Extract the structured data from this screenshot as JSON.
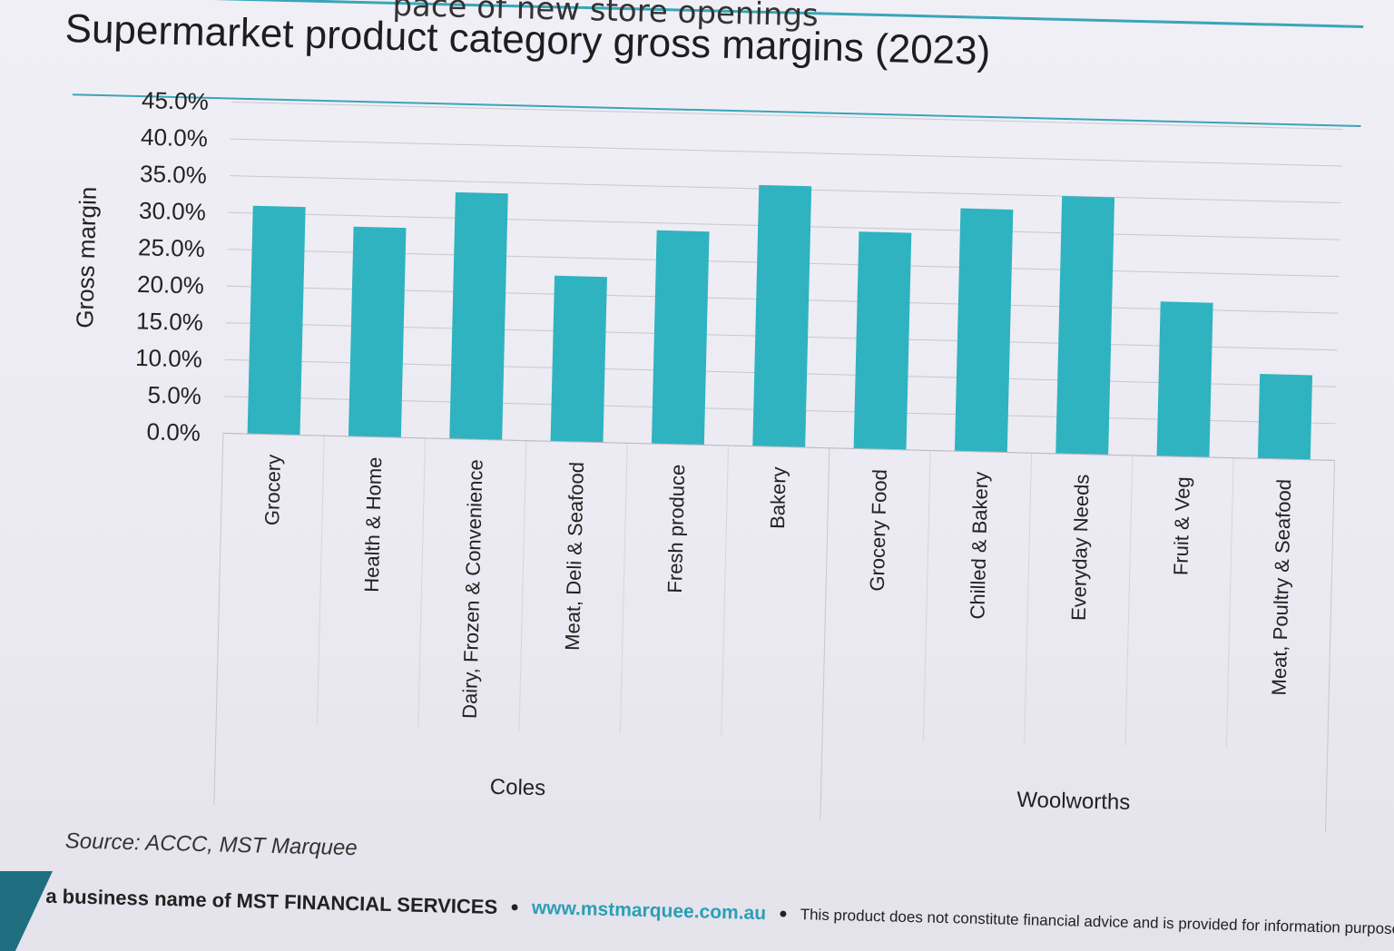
{
  "slide": {
    "top_subtitle": "pace of new store openings",
    "source": "Source: ACCC, MST Marquee",
    "footer": {
      "business": "a business name of MST FINANCIAL SERVICES",
      "url": "www.mstmarquee.com.au",
      "disclaimer": "This product does not constitute financial advice and is provided for information purposes only."
    }
  },
  "colors": {
    "bar": "#2fb3c0",
    "grid": "#c8c8cc",
    "accent": "#3aa5b8"
  },
  "chart_data": {
    "type": "bar",
    "title": "Supermarket product category gross margins (2023)",
    "xlabel": "",
    "ylabel": "Gross margin",
    "ylim": [
      0,
      45
    ],
    "yticks": [
      "0.0%",
      "5.0%",
      "10.0%",
      "15.0%",
      "20.0%",
      "25.0%",
      "30.0%",
      "35.0%",
      "40.0%",
      "45.0%"
    ],
    "grid": true,
    "legend": "none",
    "groups": [
      {
        "name": "Coles",
        "categories": [
          "Grocery",
          "Health & Home",
          "Dairy, Frozen & Convenience",
          "Meat, Deli & Seafood",
          "Fresh produce",
          "Bakery"
        ]
      },
      {
        "name": "Woolworths",
        "categories": [
          "Grocery Food",
          "Chilled & Bakery",
          "Everyday Needs",
          "Fruit & Veg",
          "Meat, Poultry & Seafood"
        ]
      }
    ],
    "categories": [
      "Grocery",
      "Health & Home",
      "Dairy, Frozen & Convenience",
      "Meat, Deli & Seafood",
      "Fresh produce",
      "Bakery",
      "Grocery Food",
      "Chilled & Bakery",
      "Everyday Needs",
      "Fruit & Veg",
      "Meat, Poultry & Seafood"
    ],
    "values": [
      31.0,
      28.5,
      33.5,
      22.5,
      29.0,
      35.5,
      29.5,
      33.0,
      35.0,
      21.0,
      11.5
    ]
  }
}
